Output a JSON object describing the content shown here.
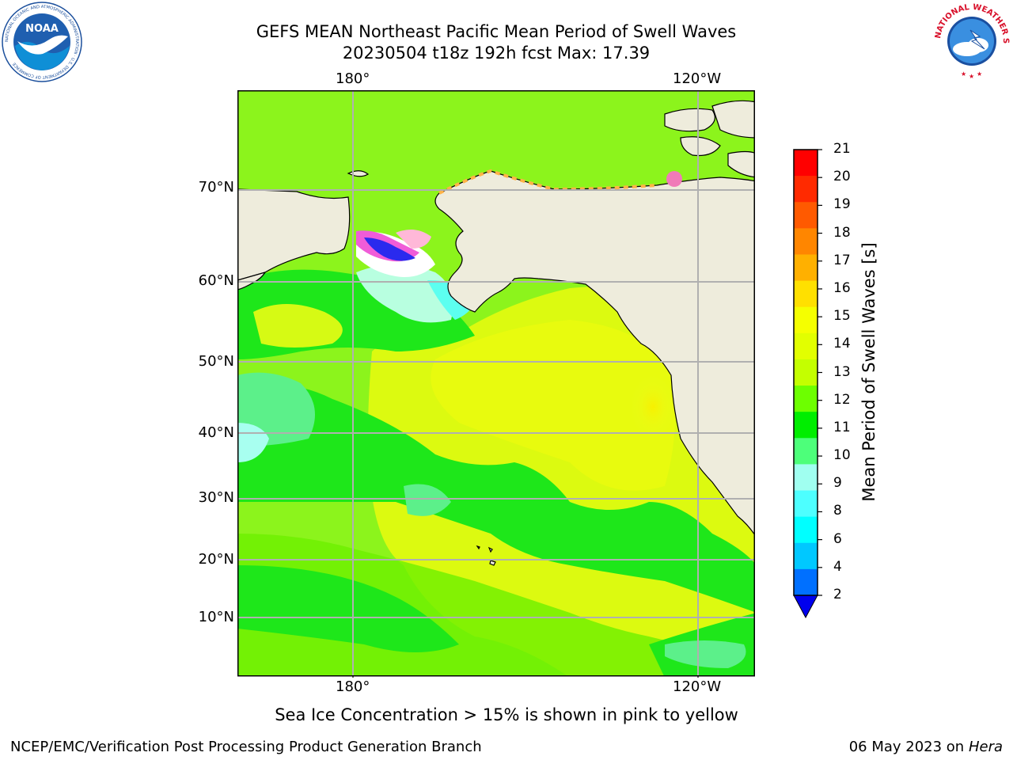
{
  "header": {
    "title_line1": "GEFS MEAN Northeast Pacific Mean Period of Swell Waves",
    "title_line2": "20230504 t18z 192h fcst   Max: 17.39"
  },
  "map": {
    "lon_labels_top": [
      "180°",
      "120°W"
    ],
    "lon_labels_bottom": [
      "180°",
      "120°W"
    ],
    "lat_labels": [
      "70°N",
      "60°N",
      "50°N",
      "40°N",
      "30°N",
      "20°N",
      "10°N"
    ],
    "land_color": "#eeecdc",
    "grid_color": "#b0b0b0"
  },
  "colorbar": {
    "title": "Mean Period of Swell Waves [s]",
    "tick_labels": [
      "21",
      "20",
      "19",
      "18",
      "17",
      "16",
      "15",
      "14",
      "13",
      "12",
      "11",
      "10",
      "9",
      "8",
      "6",
      "4",
      "2"
    ],
    "colors": [
      "#ff0000",
      "#ff2a00",
      "#ff5a00",
      "#ff8600",
      "#ffb000",
      "#ffe000",
      "#f5ff00",
      "#e2ff00",
      "#c4ff00",
      "#6dff00",
      "#00ee00",
      "#4dff7a",
      "#a0fff0",
      "#4dffff",
      "#00ffff",
      "#00c8ff",
      "#0070ff"
    ],
    "extend_color": "#0000ee"
  },
  "footer": {
    "ice_note": "Sea Ice Concentration > 15% is shown in pink to yellow",
    "branch": "NCEP/EMC/Verification Post Processing Product Generation Branch",
    "date": "06 May 2023 on",
    "host": "Hera"
  },
  "logos": {
    "noaa": "NOAA",
    "noaa_ring": "NATIONAL OCEANIC AND ATMOSPHERIC ADMINISTRATION · U.S. DEPARTMENT OF COMMERCE",
    "nws": "NATIONAL WEATHER SERVICE"
  }
}
